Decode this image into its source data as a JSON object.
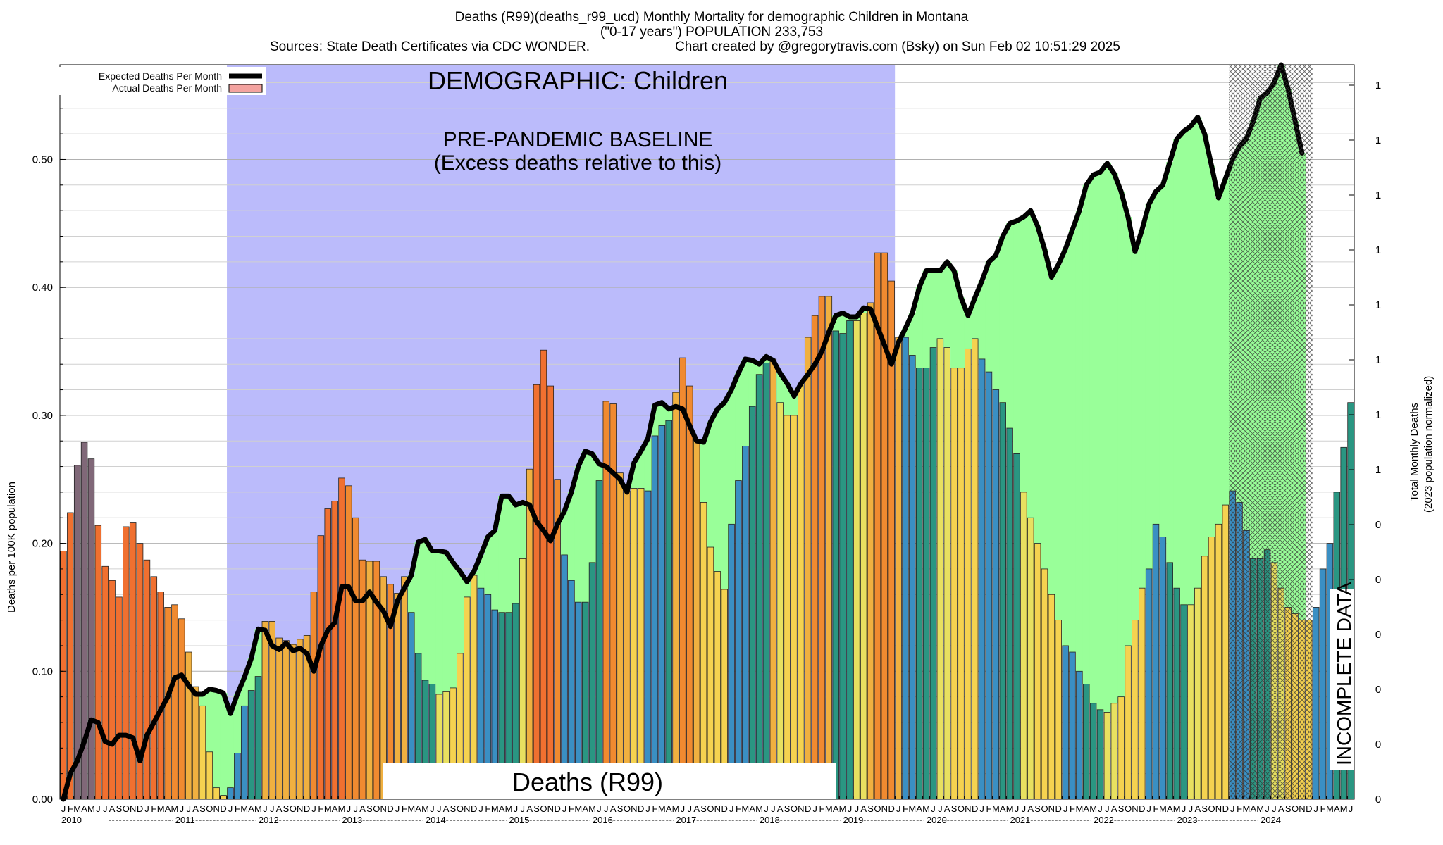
{
  "header": {
    "line1": "Deaths (R99)(deaths_r99_ucd) Monthly Mortality for demographic Children in Montana",
    "line2": "(\"0-17 years\") POPULATION 233,753",
    "line3_left": "Sources: State Death Certificates via CDC WONDER.",
    "line3_right": "Chart created by @gregorytravis.com (Bsky) on Sun Feb 02 10:51:29 2025"
  },
  "annotations": {
    "demographic": "DEMOGRAPHIC: Children",
    "baseline_line1": "PRE-PANDEMIC BASELINE",
    "baseline_line2": "(Excess deaths relative to this)",
    "cause_box": "Deaths (R99)",
    "incomplete": "INCOMPLETE DATA"
  },
  "colors": {
    "baseline_band": "#bbbbfb",
    "excess_fill": "#99ff99",
    "overlap_fill": "#6ddb9c",
    "expected_line": "#000000",
    "actual_swatch": "#f4a3a0",
    "bar_palette": [
      "#46859e",
      "#3a8fc3",
      "#2a9682",
      "#6fbf49",
      "#e8e060",
      "#f5d250",
      "#f0b040",
      "#f08a30",
      "#f07030",
      "#806878"
    ]
  },
  "chart_data": {
    "type": "bar",
    "title": "Deaths (R99)(deaths_r99_ucd) Monthly Mortality for demographic Children in Montana",
    "ylabel": "Deaths per 100K population",
    "y2label_line1": "Total Monthly Deaths",
    "y2label_line2": "(2023 population normalized)",
    "ylim": [
      0,
      0.574
    ],
    "yticks": [
      "0.00",
      "0.10",
      "0.20",
      "0.30",
      "0.40",
      "0.50"
    ],
    "y2ticks": [
      "0",
      "0",
      "0",
      "0",
      "0",
      "0",
      "1",
      "1",
      "1",
      "1",
      "1",
      "1",
      "1",
      "1"
    ],
    "grid": true,
    "legend_position": "top-left",
    "legend": [
      {
        "label": "Expected Deaths Per Month",
        "kind": "line"
      },
      {
        "label": "Actual Deaths Per Month",
        "kind": "box"
      }
    ],
    "month_letters": [
      "J",
      "F",
      "M",
      "A",
      "M",
      "J",
      "J",
      "A",
      "S",
      "O",
      "N",
      "D"
    ],
    "years": [
      "2010",
      "2011",
      "2012",
      "2013",
      "2014",
      "2015",
      "2016",
      "2017",
      "2018",
      "2019",
      "2020",
      "2021",
      "2022",
      "2023",
      "2024"
    ],
    "start": "2010-01",
    "baseline_period": [
      "2012-01",
      "2019-12"
    ],
    "incomplete_period": [
      "2024-04",
      "2024-12"
    ],
    "series": [
      {
        "name": "Actual Deaths Per Month",
        "values": [
          0.194,
          0.224,
          0.261,
          0.279,
          0.266,
          0.214,
          0.182,
          0.171,
          0.158,
          0.213,
          0.216,
          0.2,
          0.187,
          0.174,
          0.162,
          0.15,
          0.152,
          0.141,
          0.115,
          0.088,
          0.073,
          0.037,
          0.009,
          0.003,
          0.009,
          0.036,
          0.073,
          0.085,
          0.096,
          0.139,
          0.139,
          0.126,
          0.124,
          0.121,
          0.125,
          0.128,
          0.162,
          0.206,
          0.227,
          0.233,
          0.251,
          0.245,
          0.22,
          0.187,
          0.186,
          0.186,
          0.174,
          0.168,
          0.161,
          0.174,
          0.146,
          0.114,
          0.093,
          0.09,
          0.082,
          0.084,
          0.087,
          0.114,
          0.158,
          0.175,
          0.165,
          0.16,
          0.148,
          0.146,
          0.146,
          0.153,
          0.188,
          0.258,
          0.324,
          0.351,
          0.323,
          0.25,
          0.191,
          0.171,
          0.154,
          0.154,
          0.185,
          0.249,
          0.311,
          0.309,
          0.255,
          0.241,
          0.243,
          0.243,
          0.241,
          0.284,
          0.292,
          0.296,
          0.318,
          0.345,
          0.323,
          0.281,
          0.232,
          0.197,
          0.178,
          0.164,
          0.215,
          0.249,
          0.276,
          0.307,
          0.332,
          0.341,
          0.344,
          0.31,
          0.3,
          0.3,
          0.325,
          0.361,
          0.378,
          0.393,
          0.393,
          0.366,
          0.364,
          0.374,
          0.374,
          0.38,
          0.388,
          0.427,
          0.427,
          0.405,
          0.361,
          0.361,
          0.347,
          0.337,
          0.337,
          0.353,
          0.36,
          0.353,
          0.337,
          0.337,
          0.352,
          0.36,
          0.344,
          0.334,
          0.32,
          0.31,
          0.29,
          0.27,
          0.24,
          0.22,
          0.2,
          0.18,
          0.16,
          0.14,
          0.12,
          0.115,
          0.1,
          0.09,
          0.075,
          0.07,
          0.068,
          0.075,
          0.08,
          0.12,
          0.14,
          0.165,
          0.18,
          0.215,
          0.205,
          0.185,
          0.165,
          0.152,
          0.152,
          0.165,
          0.19,
          0.205,
          0.215,
          0.23,
          0.241,
          0.232,
          0.21,
          0.188,
          0.188,
          0.195,
          0.185,
          0.165,
          0.15,
          0.145,
          0.14,
          0.14,
          0.15,
          0.18,
          0.2,
          0.24,
          0.275,
          0.31
        ]
      },
      {
        "name": "Expected Deaths Per Month",
        "values": [
          0.0,
          0.02,
          0.03,
          0.045,
          0.062,
          0.06,
          0.045,
          0.043,
          0.05,
          0.05,
          0.048,
          0.03,
          0.05,
          0.06,
          0.07,
          0.08,
          0.095,
          0.097,
          0.089,
          0.082,
          0.082,
          0.086,
          0.085,
          0.083,
          0.067,
          0.082,
          0.095,
          0.11,
          0.133,
          0.132,
          0.12,
          0.117,
          0.122,
          0.116,
          0.118,
          0.114,
          0.1,
          0.12,
          0.132,
          0.138,
          0.166,
          0.166,
          0.155,
          0.155,
          0.162,
          0.154,
          0.147,
          0.135,
          0.155,
          0.165,
          0.175,
          0.201,
          0.203,
          0.194,
          0.194,
          0.193,
          0.185,
          0.178,
          0.17,
          0.178,
          0.191,
          0.205,
          0.21,
          0.237,
          0.237,
          0.23,
          0.232,
          0.23,
          0.217,
          0.21,
          0.202,
          0.215,
          0.225,
          0.24,
          0.26,
          0.272,
          0.27,
          0.262,
          0.26,
          0.255,
          0.25,
          0.24,
          0.263,
          0.272,
          0.282,
          0.308,
          0.31,
          0.305,
          0.307,
          0.305,
          0.292,
          0.28,
          0.279,
          0.295,
          0.305,
          0.31,
          0.32,
          0.333,
          0.344,
          0.343,
          0.34,
          0.346,
          0.343,
          0.333,
          0.325,
          0.315,
          0.325,
          0.332,
          0.34,
          0.35,
          0.365,
          0.378,
          0.38,
          0.377,
          0.377,
          0.384,
          0.383,
          0.369,
          0.355,
          0.34,
          0.357,
          0.368,
          0.38,
          0.4,
          0.413,
          0.413,
          0.413,
          0.42,
          0.413,
          0.392,
          0.378,
          0.392,
          0.405,
          0.42,
          0.425,
          0.44,
          0.45,
          0.452,
          0.455,
          0.46,
          0.448,
          0.43,
          0.408,
          0.418,
          0.43,
          0.445,
          0.46,
          0.48,
          0.488,
          0.49,
          0.497,
          0.489,
          0.475,
          0.455,
          0.428,
          0.445,
          0.465,
          0.475,
          0.48,
          0.498,
          0.516,
          0.522,
          0.526,
          0.533,
          0.52,
          0.495,
          0.47,
          0.485,
          0.5,
          0.51,
          0.516,
          0.53,
          0.548,
          0.552,
          0.56,
          0.574,
          0.555,
          0.53,
          0.505
        ]
      }
    ]
  }
}
